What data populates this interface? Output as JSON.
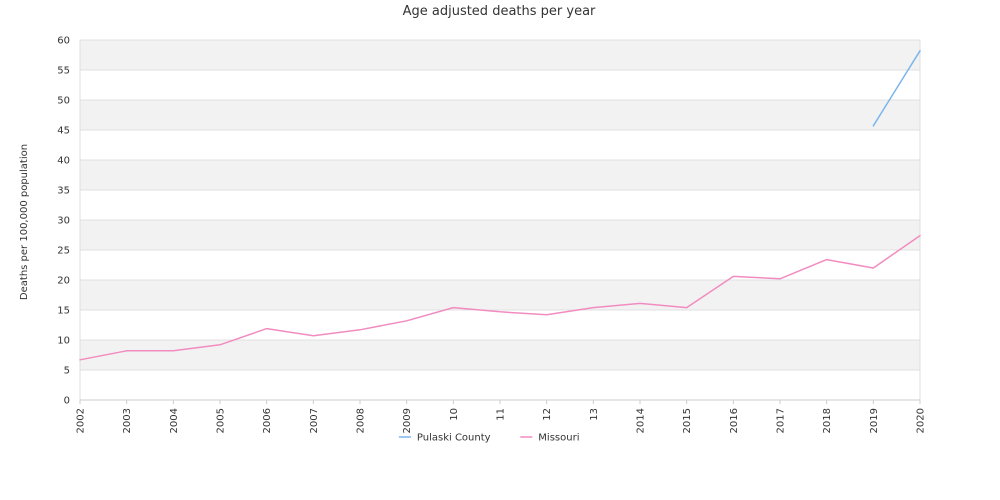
{
  "chart_data": {
    "type": "line",
    "title": "Age adjusted deaths per year",
    "xlabel": "",
    "ylabel": "Deaths per 100,000 population",
    "categories": [
      "2002",
      "2003",
      "2004",
      "2005",
      "2006",
      "2007",
      "2008",
      "2009",
      "10",
      "11",
      "12",
      "13",
      "2014",
      "2015",
      "2016",
      "2017",
      "2018",
      "2019",
      "2020"
    ],
    "ylim": [
      0,
      60
    ],
    "yticks": [
      "0",
      "5",
      "10",
      "15",
      "20",
      "25",
      "30",
      "35",
      "40",
      "45",
      "50",
      "55",
      "60"
    ],
    "grid": "horizontal alternating bands",
    "legend_position": "bottom-center",
    "series": [
      {
        "name": "Pulaski County",
        "color": "#7cb5ec",
        "values": [
          null,
          null,
          null,
          null,
          null,
          null,
          null,
          null,
          null,
          null,
          null,
          null,
          null,
          null,
          null,
          null,
          null,
          45.7,
          58.2
        ]
      },
      {
        "name": "Missouri",
        "color": "#f28cc0",
        "values": [
          6.7,
          8.2,
          8.2,
          9.2,
          11.9,
          10.7,
          11.7,
          13.2,
          15.4,
          14.7,
          14.2,
          15.4,
          16.1,
          15.4,
          20.6,
          20.2,
          23.4,
          22.0,
          27.4
        ]
      }
    ]
  }
}
